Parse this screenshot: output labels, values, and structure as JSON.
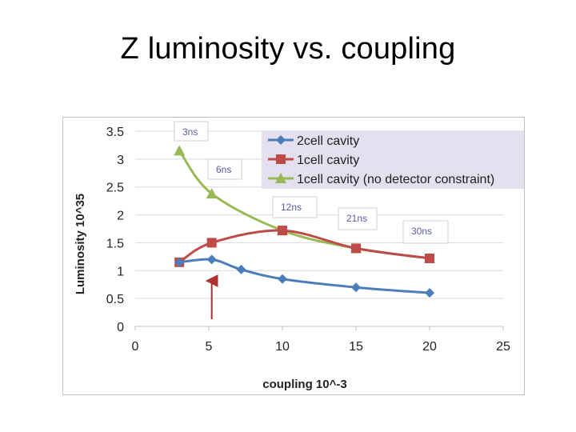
{
  "slide": {
    "title": "Z luminosity vs. coupling"
  },
  "chart_data": {
    "type": "line",
    "title": "",
    "xlabel": "coupling  10^-3",
    "ylabel": "Luminosity 10^35",
    "xlim": [
      0,
      25
    ],
    "ylim": [
      0,
      3.5
    ],
    "x_ticks": [
      "0",
      "5",
      "10",
      "15",
      "20",
      "25"
    ],
    "y_ticks": [
      "0",
      "0.5",
      "1",
      "1.5",
      "2",
      "2.5",
      "3",
      "3.5"
    ],
    "grid": "horizontal",
    "legend_position": "top-right",
    "series": [
      {
        "name": "2cell cavity",
        "color": "#4a7ebb",
        "marker": "diamond",
        "points": [
          [
            3,
            1.15
          ],
          [
            5.2,
            1.2
          ],
          [
            7.2,
            1.02
          ],
          [
            10,
            0.85
          ],
          [
            15,
            0.7
          ],
          [
            20,
            0.6
          ]
        ]
      },
      {
        "name": "1cell cavity",
        "color": "#be4b48",
        "marker": "square",
        "points": [
          [
            3,
            1.15
          ],
          [
            5.2,
            1.5
          ],
          [
            10,
            1.72
          ],
          [
            15,
            1.4
          ],
          [
            20,
            1.22
          ]
        ]
      },
      {
        "name": "1cell cavity (no detector constraint)",
        "color": "#98b954",
        "marker": "triangle",
        "points": [
          [
            3,
            3.15
          ],
          [
            5.2,
            2.38
          ],
          [
            10,
            1.72
          ],
          [
            15,
            1.4
          ],
          [
            20,
            1.22
          ]
        ]
      }
    ],
    "annotations": [
      {
        "label": "3ns"
      },
      {
        "label": "6ns"
      },
      {
        "label": "12ns"
      },
      {
        "label": "21ns"
      },
      {
        "label": "30ns"
      }
    ],
    "arrow_marker": {
      "x": 5.2,
      "color": "#b03030"
    }
  }
}
